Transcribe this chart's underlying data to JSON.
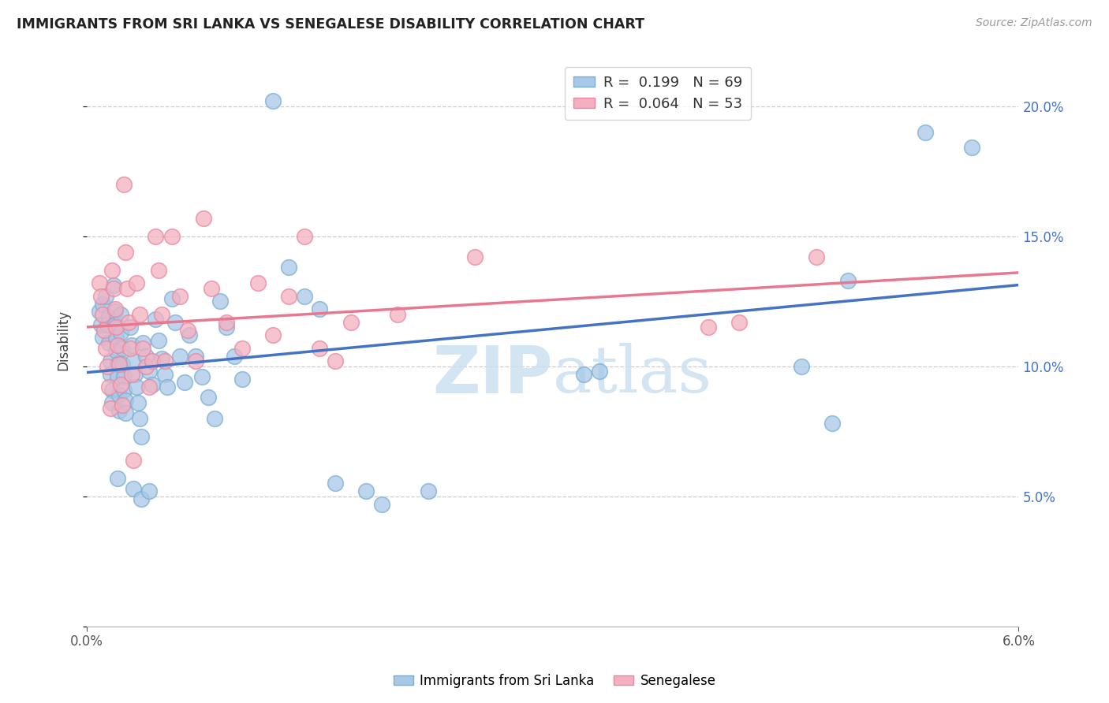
{
  "title": "IMMIGRANTS FROM SRI LANKA VS SENEGALESE DISABILITY CORRELATION CHART",
  "source": "Source: ZipAtlas.com",
  "ylabel": "Disability",
  "x_range": [
    0.0,
    0.06
  ],
  "y_range": [
    0.0,
    0.22
  ],
  "color_blue": "#a8c8e8",
  "color_blue_edge": "#7aafd4",
  "color_pink": "#f4b0c0",
  "color_pink_edge": "#e888a0",
  "color_blue_line": "#4472c4",
  "color_pink_line": "#e87890",
  "watermark_color": "#cce0f0",
  "sri_lanka_points": [
    [
      0.0008,
      0.121
    ],
    [
      0.0009,
      0.116
    ],
    [
      0.001,
      0.111
    ],
    [
      0.001,
      0.124
    ],
    [
      0.0012,
      0.127
    ],
    [
      0.0013,
      0.116
    ],
    [
      0.0014,
      0.119
    ],
    [
      0.0014,
      0.109
    ],
    [
      0.0015,
      0.102
    ],
    [
      0.0015,
      0.097
    ],
    [
      0.0016,
      0.091
    ],
    [
      0.0016,
      0.086
    ],
    [
      0.0017,
      0.131
    ],
    [
      0.0018,
      0.121
    ],
    [
      0.0018,
      0.116
    ],
    [
      0.0019,
      0.111
    ],
    [
      0.0019,
      0.106
    ],
    [
      0.002,
      0.101
    ],
    [
      0.002,
      0.096
    ],
    [
      0.0021,
      0.089
    ],
    [
      0.0021,
      0.083
    ],
    [
      0.0022,
      0.12
    ],
    [
      0.0022,
      0.113
    ],
    [
      0.0023,
      0.107
    ],
    [
      0.0023,
      0.101
    ],
    [
      0.0024,
      0.096
    ],
    [
      0.0024,
      0.091
    ],
    [
      0.0025,
      0.087
    ],
    [
      0.0025,
      0.082
    ],
    [
      0.0028,
      0.115
    ],
    [
      0.0029,
      0.108
    ],
    [
      0.003,
      0.102
    ],
    [
      0.0031,
      0.097
    ],
    [
      0.0032,
      0.092
    ],
    [
      0.0033,
      0.086
    ],
    [
      0.0034,
      0.08
    ],
    [
      0.0035,
      0.073
    ],
    [
      0.0036,
      0.109
    ],
    [
      0.0038,
      0.104
    ],
    [
      0.004,
      0.098
    ],
    [
      0.0042,
      0.093
    ],
    [
      0.0044,
      0.118
    ],
    [
      0.0046,
      0.11
    ],
    [
      0.0048,
      0.103
    ],
    [
      0.005,
      0.097
    ],
    [
      0.0052,
      0.092
    ],
    [
      0.0055,
      0.126
    ],
    [
      0.0057,
      0.117
    ],
    [
      0.006,
      0.104
    ],
    [
      0.0063,
      0.094
    ],
    [
      0.0066,
      0.112
    ],
    [
      0.007,
      0.104
    ],
    [
      0.0074,
      0.096
    ],
    [
      0.0078,
      0.088
    ],
    [
      0.0082,
      0.08
    ],
    [
      0.0086,
      0.125
    ],
    [
      0.009,
      0.115
    ],
    [
      0.0095,
      0.104
    ],
    [
      0.01,
      0.095
    ],
    [
      0.012,
      0.202
    ],
    [
      0.013,
      0.138
    ],
    [
      0.014,
      0.127
    ],
    [
      0.015,
      0.122
    ],
    [
      0.016,
      0.055
    ],
    [
      0.018,
      0.052
    ],
    [
      0.019,
      0.047
    ],
    [
      0.022,
      0.052
    ],
    [
      0.032,
      0.097
    ],
    [
      0.033,
      0.098
    ],
    [
      0.046,
      0.1
    ],
    [
      0.048,
      0.078
    ],
    [
      0.049,
      0.133
    ],
    [
      0.054,
      0.19
    ],
    [
      0.057,
      0.184
    ],
    [
      0.002,
      0.057
    ],
    [
      0.003,
      0.053
    ],
    [
      0.0035,
      0.049
    ],
    [
      0.004,
      0.052
    ]
  ],
  "senegalese_points": [
    [
      0.0008,
      0.132
    ],
    [
      0.0009,
      0.127
    ],
    [
      0.001,
      0.12
    ],
    [
      0.0011,
      0.114
    ],
    [
      0.0012,
      0.107
    ],
    [
      0.0013,
      0.1
    ],
    [
      0.0014,
      0.092
    ],
    [
      0.0015,
      0.084
    ],
    [
      0.0016,
      0.137
    ],
    [
      0.0017,
      0.13
    ],
    [
      0.0018,
      0.122
    ],
    [
      0.0019,
      0.115
    ],
    [
      0.002,
      0.108
    ],
    [
      0.0021,
      0.101
    ],
    [
      0.0022,
      0.093
    ],
    [
      0.0023,
      0.085
    ],
    [
      0.0024,
      0.17
    ],
    [
      0.0025,
      0.144
    ],
    [
      0.0026,
      0.13
    ],
    [
      0.0027,
      0.117
    ],
    [
      0.0028,
      0.107
    ],
    [
      0.0029,
      0.097
    ],
    [
      0.003,
      0.064
    ],
    [
      0.0032,
      0.132
    ],
    [
      0.0034,
      0.12
    ],
    [
      0.0036,
      0.107
    ],
    [
      0.0038,
      0.1
    ],
    [
      0.004,
      0.092
    ],
    [
      0.0042,
      0.102
    ],
    [
      0.0044,
      0.15
    ],
    [
      0.0046,
      0.137
    ],
    [
      0.0048,
      0.12
    ],
    [
      0.005,
      0.102
    ],
    [
      0.0055,
      0.15
    ],
    [
      0.006,
      0.127
    ],
    [
      0.0065,
      0.114
    ],
    [
      0.007,
      0.102
    ],
    [
      0.0075,
      0.157
    ],
    [
      0.008,
      0.13
    ],
    [
      0.009,
      0.117
    ],
    [
      0.01,
      0.107
    ],
    [
      0.011,
      0.132
    ],
    [
      0.012,
      0.112
    ],
    [
      0.013,
      0.127
    ],
    [
      0.014,
      0.15
    ],
    [
      0.015,
      0.107
    ],
    [
      0.016,
      0.102
    ],
    [
      0.017,
      0.117
    ],
    [
      0.02,
      0.12
    ],
    [
      0.025,
      0.142
    ],
    [
      0.04,
      0.115
    ],
    [
      0.042,
      0.117
    ],
    [
      0.047,
      0.142
    ]
  ]
}
